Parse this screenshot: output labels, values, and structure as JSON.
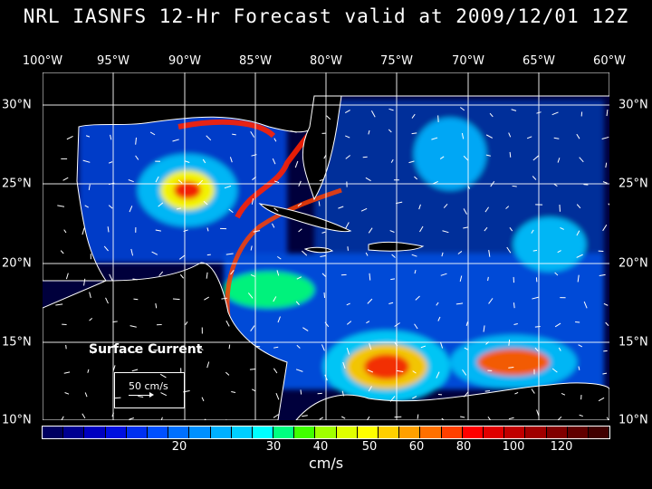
{
  "title": "NRL IASNFS  12-Hr Forecast valid at 2009/12/01 12Z",
  "lon_labels": [
    "100°W",
    "95°W",
    "90°W",
    "85°W",
    "80°W",
    "75°W",
    "70°W",
    "65°W",
    "60°W"
  ],
  "lat_labels": [
    "30°N",
    "25°N",
    "20°N",
    "15°N",
    "10°N"
  ],
  "legend": {
    "surface_label": "Surface Current",
    "ref_vector_label": "50 cm/s"
  },
  "colorbar": {
    "unit": "cm/s",
    "tick_labels": [
      "20",
      "30",
      "40",
      "50",
      "60",
      "80",
      "100",
      "120"
    ],
    "colors": [
      "#000060",
      "#000090",
      "#0000c0",
      "#0010e0",
      "#0030f0",
      "#0050ff",
      "#0070ff",
      "#0090ff",
      "#00b0ff",
      "#00d0ff",
      "#00ffff",
      "#00ff80",
      "#40ff00",
      "#a0ff00",
      "#e0ff00",
      "#ffff00",
      "#ffd000",
      "#ffa000",
      "#ff7000",
      "#ff4000",
      "#ff0000",
      "#e00000",
      "#c00000",
      "#a00000",
      "#800000",
      "#600000",
      "#400000"
    ]
  },
  "colors": {
    "background": "#000000",
    "ocean": "#00003c",
    "land": "#000000"
  }
}
